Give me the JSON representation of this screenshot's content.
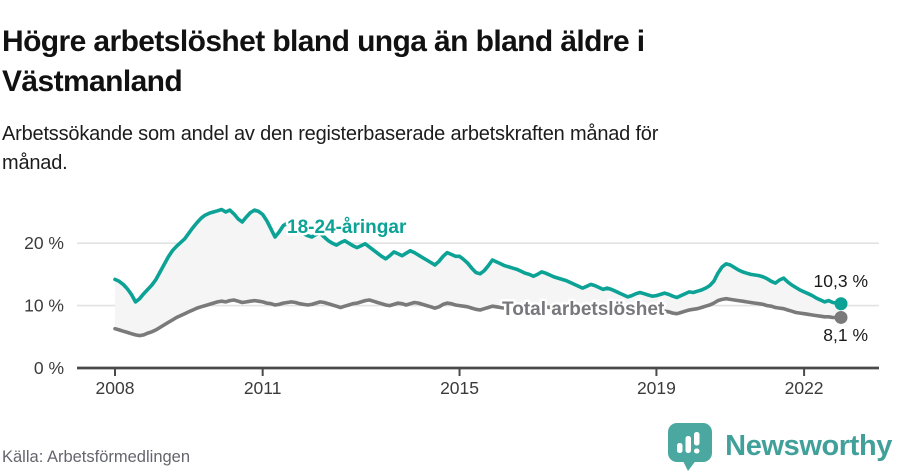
{
  "header": {
    "title_lines": [
      "Högre arbetslöshet bland unga än bland äldre i",
      "Västmanland"
    ],
    "subtitle_lines": [
      "Arbetssökande som andel av den registerbaserade arbetskraften månad för",
      "månad."
    ]
  },
  "footer": {
    "source": "Källa: Arbetsförmedlingen",
    "brand": "Newsworthy"
  },
  "colors": {
    "youth_line": "#0ca296",
    "total_line": "#7a7a7a",
    "total_label": "#77777c",
    "area_fill": "#f5f5f5",
    "grid": "#e2e2e2",
    "axis": "#4a4a4a",
    "brand_teal": "#41a09a",
    "logo_bubble": "#4aa8a0"
  },
  "chart_data": {
    "type": "line",
    "title": "Högre arbetslöshet bland unga än bland äldre i Västmanland",
    "subtitle": "Arbetssökande som andel av den registerbaserade arbetskraften månad för månad.",
    "x_start": "2008-01",
    "x_end": "2022-10",
    "x_frequency": "monthly",
    "x_tick_labels": [
      "2008",
      "2011",
      "2015",
      "2019",
      "2022"
    ],
    "x_tick_indices": [
      0,
      36,
      84,
      132,
      168
    ],
    "y_tick_labels": [
      "0 %",
      "10 %",
      "20 %"
    ],
    "y_tick_values": [
      0,
      10,
      20
    ],
    "ylim": [
      0,
      27
    ],
    "grid": "horizontal",
    "legend_position": "inline-labels",
    "series": [
      {
        "name": "18-24-åringar",
        "color": "#0ca296",
        "end_label": "10,3 %",
        "end_value": 10.3,
        "values": [
          14.2,
          13.9,
          13.4,
          12.7,
          11.8,
          10.6,
          11.1,
          11.9,
          12.6,
          13.3,
          14.2,
          15.4,
          16.6,
          17.8,
          18.8,
          19.5,
          20.1,
          20.7,
          21.6,
          22.5,
          23.3,
          24.0,
          24.5,
          24.8,
          25.0,
          25.2,
          25.4,
          25.0,
          25.3,
          24.7,
          23.9,
          23.4,
          24.2,
          24.9,
          25.3,
          25.1,
          24.6,
          23.6,
          22.3,
          21.0,
          21.8,
          22.8,
          23.2,
          22.9,
          22.4,
          21.9,
          21.5,
          21.2,
          21.0,
          21.4,
          21.6,
          21.0,
          20.4,
          20.0,
          19.7,
          20.1,
          20.4,
          20.0,
          19.6,
          19.3,
          19.6,
          19.9,
          19.4,
          18.9,
          18.4,
          17.9,
          17.5,
          18.0,
          18.6,
          18.3,
          18.0,
          18.4,
          18.8,
          18.5,
          18.1,
          17.7,
          17.3,
          16.9,
          16.5,
          17.1,
          17.9,
          18.5,
          18.2,
          17.9,
          17.9,
          17.4,
          16.8,
          16.0,
          15.3,
          15.1,
          15.6,
          16.4,
          17.3,
          17.0,
          16.7,
          16.4,
          16.2,
          16.0,
          15.8,
          15.5,
          15.2,
          15.0,
          14.7,
          15.0,
          15.4,
          15.2,
          14.9,
          14.6,
          14.4,
          14.2,
          14.0,
          13.7,
          13.4,
          13.1,
          12.8,
          13.1,
          13.4,
          13.2,
          12.9,
          12.6,
          12.8,
          12.6,
          12.3,
          12.0,
          11.7,
          11.4,
          11.6,
          11.9,
          12.1,
          11.9,
          11.7,
          11.5,
          11.6,
          11.8,
          12.0,
          11.8,
          11.5,
          11.3,
          11.6,
          11.9,
          12.2,
          12.1,
          12.3,
          12.5,
          12.8,
          13.2,
          13.9,
          15.2,
          16.2,
          16.7,
          16.5,
          16.1,
          15.7,
          15.4,
          15.2,
          15.0,
          14.9,
          14.8,
          14.6,
          14.3,
          13.9,
          13.6,
          14.1,
          14.4,
          13.8,
          13.3,
          12.9,
          12.5,
          12.2,
          11.9,
          11.6,
          11.2,
          10.9,
          10.6,
          10.8,
          10.5,
          10.4,
          10.3
        ]
      },
      {
        "name": "Total arbetslöshet",
        "color": "#7a7a7a",
        "end_label": "8,1 %",
        "end_value": 8.1,
        "values": [
          6.3,
          6.1,
          5.9,
          5.7,
          5.5,
          5.3,
          5.2,
          5.3,
          5.6,
          5.8,
          6.1,
          6.5,
          6.9,
          7.3,
          7.7,
          8.1,
          8.4,
          8.7,
          9.0,
          9.3,
          9.6,
          9.8,
          10.0,
          10.2,
          10.4,
          10.6,
          10.7,
          10.6,
          10.8,
          10.9,
          10.7,
          10.5,
          10.6,
          10.7,
          10.8,
          10.7,
          10.6,
          10.4,
          10.3,
          10.1,
          10.2,
          10.4,
          10.5,
          10.6,
          10.5,
          10.3,
          10.2,
          10.1,
          10.2,
          10.4,
          10.6,
          10.5,
          10.3,
          10.1,
          9.9,
          9.7,
          9.9,
          10.1,
          10.3,
          10.4,
          10.6,
          10.8,
          10.9,
          10.7,
          10.5,
          10.3,
          10.1,
          10.0,
          10.2,
          10.4,
          10.3,
          10.1,
          10.3,
          10.5,
          10.4,
          10.2,
          10.0,
          9.8,
          9.6,
          9.8,
          10.2,
          10.4,
          10.3,
          10.1,
          10.0,
          9.9,
          9.8,
          9.6,
          9.4,
          9.3,
          9.5,
          9.7,
          9.9,
          9.8,
          9.7,
          9.6,
          9.7,
          9.8,
          9.8,
          9.7,
          9.5,
          9.4,
          9.5,
          9.7,
          9.9,
          9.8,
          9.7,
          9.6,
          9.7,
          9.8,
          9.9,
          9.8,
          9.7,
          9.5,
          9.4,
          9.6,
          9.8,
          9.9,
          9.8,
          9.7,
          9.6,
          9.5,
          9.4,
          9.2,
          9.0,
          8.9,
          9.0,
          9.2,
          9.3,
          9.2,
          9.1,
          9.0,
          8.9,
          9.0,
          9.1,
          9.0,
          8.8,
          8.7,
          8.9,
          9.1,
          9.3,
          9.4,
          9.5,
          9.7,
          9.9,
          10.1,
          10.4,
          10.8,
          11.0,
          11.1,
          11.0,
          10.9,
          10.8,
          10.7,
          10.6,
          10.5,
          10.4,
          10.3,
          10.2,
          10.0,
          9.9,
          9.7,
          9.6,
          9.5,
          9.3,
          9.1,
          8.9,
          8.8,
          8.7,
          8.6,
          8.5,
          8.4,
          8.3,
          8.2,
          8.2,
          8.1,
          8.1,
          8.1
        ]
      }
    ]
  }
}
